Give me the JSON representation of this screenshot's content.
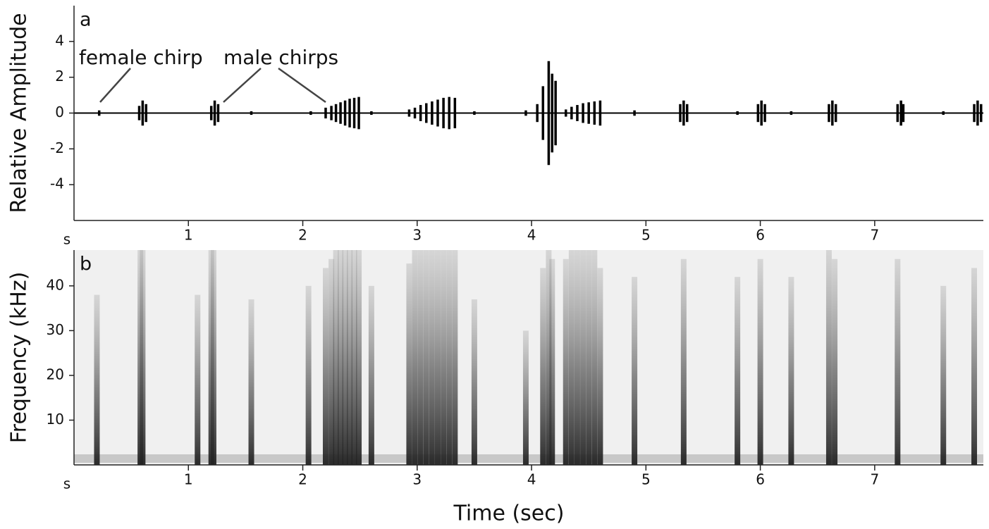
{
  "chart_data": [
    {
      "type": "waveform",
      "panel_label": "a",
      "y_label": "Relative Amplitude",
      "x_unit": "s",
      "annotations": [
        "female chirp",
        "male chirps"
      ],
      "xlim": [
        0,
        7.95
      ],
      "xticks": [
        1,
        2,
        3,
        4,
        5,
        6,
        7
      ],
      "ylim": [
        -6,
        6
      ],
      "yticks": [
        -4,
        -2,
        0,
        2,
        4
      ],
      "color": "#000000",
      "x": [
        0.22,
        0.57,
        0.6,
        0.63,
        1.2,
        1.23,
        1.26,
        1.55,
        2.07,
        2.2,
        2.25,
        2.29,
        2.33,
        2.37,
        2.41,
        2.45,
        2.49,
        2.6,
        2.93,
        2.98,
        3.03,
        3.08,
        3.13,
        3.18,
        3.23,
        3.28,
        3.33,
        3.5,
        3.95,
        4.05,
        4.1,
        4.15,
        4.18,
        4.21,
        4.3,
        4.35,
        4.4,
        4.45,
        4.5,
        4.55,
        4.6,
        4.9,
        5.3,
        5.33,
        5.36,
        5.8,
        5.98,
        6.01,
        6.04,
        6.27,
        6.6,
        6.63,
        6.66,
        7.2,
        7.23,
        7.25,
        7.6,
        7.87,
        7.9,
        7.93
      ],
      "values": [
        0.15,
        0.4,
        0.7,
        0.5,
        0.4,
        0.7,
        0.5,
        0.1,
        0.1,
        0.3,
        0.4,
        0.5,
        0.6,
        0.7,
        0.8,
        0.85,
        0.9,
        0.1,
        0.2,
        0.3,
        0.45,
        0.55,
        0.65,
        0.75,
        0.85,
        0.9,
        0.85,
        0.1,
        0.15,
        0.5,
        1.5,
        2.9,
        2.2,
        1.8,
        0.2,
        0.35,
        0.45,
        0.55,
        0.6,
        0.65,
        0.7,
        0.15,
        0.5,
        0.7,
        0.5,
        0.1,
        0.5,
        0.7,
        0.5,
        0.1,
        0.5,
        0.7,
        0.5,
        0.5,
        0.7,
        0.5,
        0.1,
        0.5,
        0.7,
        0.5
      ]
    },
    {
      "type": "spectrogram",
      "panel_label": "b",
      "y_label": "Frequency (kHz)",
      "x_unit": "s",
      "x_label": "Time (sec)",
      "xlim": [
        0,
        7.95
      ],
      "xticks": [
        1,
        2,
        3,
        4,
        5,
        6,
        7
      ],
      "ylim": [
        0,
        48
      ],
      "yticks": [
        10,
        20,
        30,
        40
      ],
      "color": "#333333",
      "x": [
        0.2,
        0.58,
        0.6,
        1.08,
        1.2,
        1.22,
        1.55,
        2.05,
        2.2,
        2.25,
        2.29,
        2.33,
        2.37,
        2.41,
        2.45,
        2.49,
        2.6,
        2.93,
        2.98,
        3.03,
        3.08,
        3.13,
        3.18,
        3.23,
        3.28,
        3.33,
        3.5,
        3.95,
        4.1,
        4.15,
        4.18,
        4.3,
        4.35,
        4.4,
        4.45,
        4.5,
        4.55,
        4.6,
        4.9,
        5.33,
        5.8,
        6.0,
        6.27,
        6.6,
        6.65,
        7.2,
        7.6,
        7.87
      ],
      "values": [
        38,
        48,
        48,
        38,
        48,
        48,
        37,
        40,
        44,
        46,
        48,
        48,
        48,
        48,
        48,
        48,
        40,
        45,
        48,
        48,
        48,
        48,
        48,
        48,
        48,
        48,
        37,
        30,
        44,
        48,
        46,
        46,
        48,
        48,
        48,
        48,
        48,
        44,
        42,
        46,
        42,
        46,
        42,
        48,
        46,
        46,
        40,
        44
      ]
    }
  ]
}
